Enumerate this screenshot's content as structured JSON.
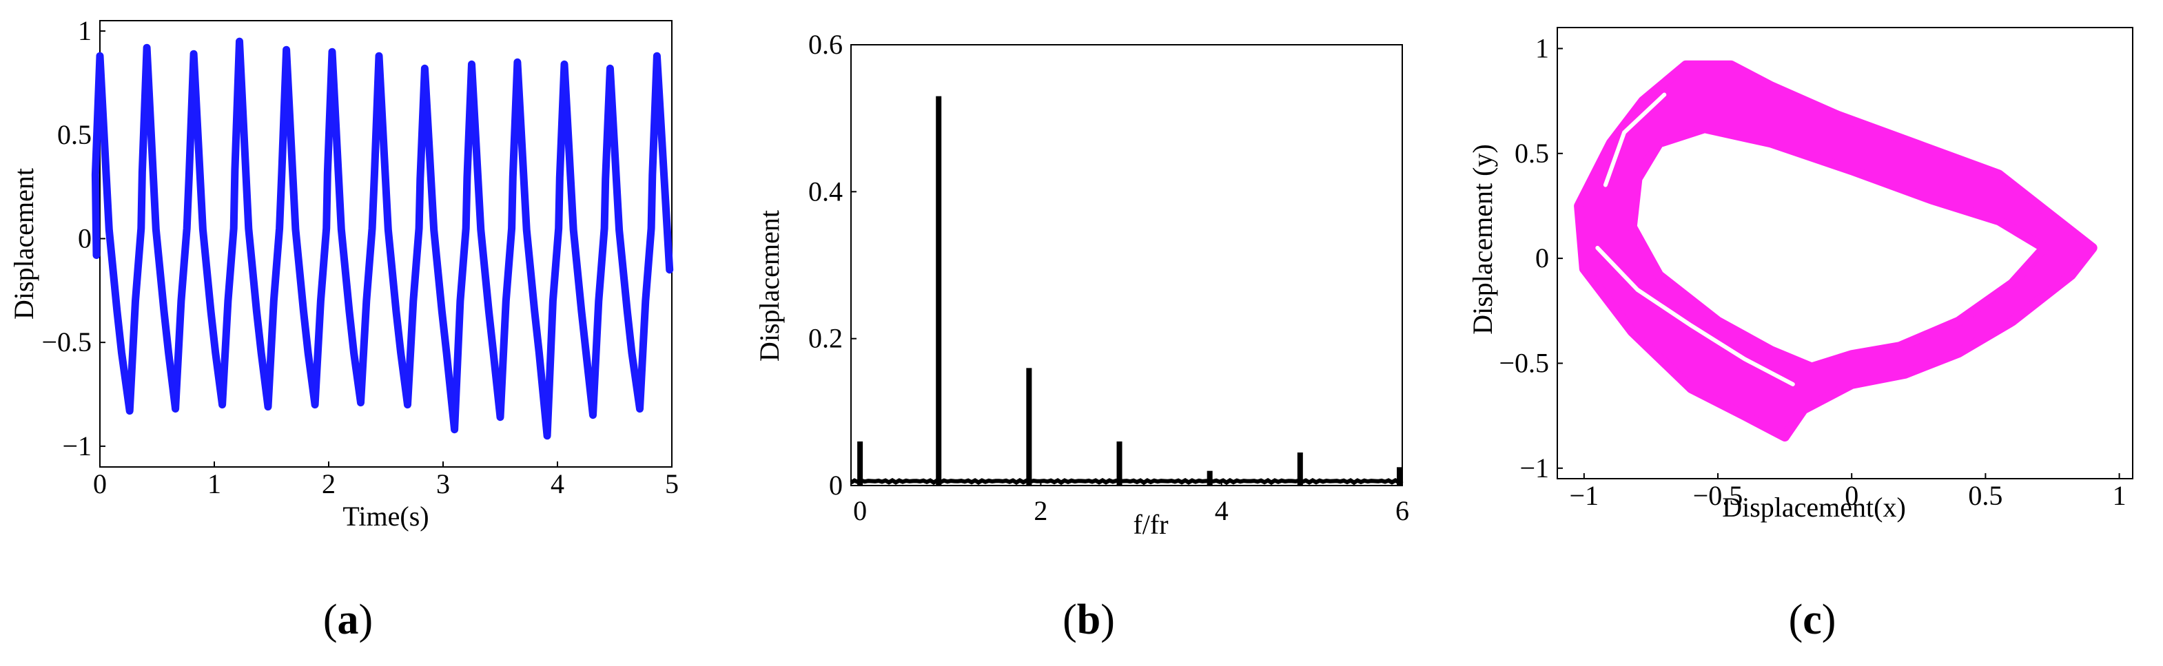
{
  "chart_data": [
    {
      "type": "line",
      "panel_label": "a",
      "xlabel": "Time(s)",
      "ylabel": "Displacement",
      "xlim": [
        0,
        5
      ],
      "ylim": [
        -1.1,
        1.05
      ],
      "xticks": [
        0,
        1,
        2,
        3,
        4,
        5
      ],
      "yticks": [
        -1,
        -0.5,
        0,
        0.5,
        1
      ],
      "ytick_labels": [
        "−1",
        "−0.5",
        "0",
        "0.5",
        "1"
      ],
      "color": "#1a1aff",
      "period_s": 0.405,
      "peaks": [
        [
          0.0,
          0.88
        ],
        [
          0.41,
          0.92
        ],
        [
          0.82,
          0.89
        ],
        [
          1.22,
          0.95
        ],
        [
          1.63,
          0.91
        ],
        [
          2.03,
          0.9
        ],
        [
          2.44,
          0.88
        ],
        [
          2.84,
          0.82
        ],
        [
          3.25,
          0.84
        ],
        [
          3.65,
          0.85
        ],
        [
          4.06,
          0.84
        ],
        [
          4.46,
          0.82
        ],
        [
          4.87,
          0.88
        ]
      ],
      "troughs": [
        [
          0.26,
          -0.83
        ],
        [
          0.66,
          -0.82
        ],
        [
          1.07,
          -0.8
        ],
        [
          1.47,
          -0.81
        ],
        [
          1.88,
          -0.8
        ],
        [
          2.28,
          -0.79
        ],
        [
          2.69,
          -0.8
        ],
        [
          3.1,
          -0.92
        ],
        [
          3.5,
          -0.86
        ],
        [
          3.91,
          -0.95
        ],
        [
          4.31,
          -0.85
        ],
        [
          4.72,
          -0.82
        ]
      ],
      "end": [
        4.98,
        -0.15
      ],
      "start": [
        -0.03,
        -0.08
      ]
    },
    {
      "type": "line",
      "panel_label": "b",
      "xlabel": "f/fr",
      "ylabel": "Displacement",
      "xlim": [
        -0.1,
        6
      ],
      "ylim": [
        0,
        0.6
      ],
      "xticks": [
        0,
        2,
        4,
        6
      ],
      "yticks": [
        0,
        0.2,
        0.4,
        0.6
      ],
      "color": "#000000",
      "peaks": [
        [
          0,
          0.06
        ],
        [
          0.87,
          0.53
        ],
        [
          1.87,
          0.16
        ],
        [
          2.87,
          0.06
        ],
        [
          3.87,
          0.02
        ],
        [
          4.87,
          0.045
        ],
        [
          5.97,
          0.025
        ]
      ]
    },
    {
      "type": "scatter",
      "panel_label": "c",
      "xlabel": "Displacement(x)",
      "ylabel": "Displacement (y)",
      "xlim": [
        -1.1,
        1.05
      ],
      "ylim": [
        -1.05,
        1.1
      ],
      "xticks": [
        -1,
        -0.5,
        0,
        0.5,
        1
      ],
      "xtick_labels": [
        "−1",
        "−0.5",
        "0",
        "0.5",
        "1"
      ],
      "yticks": [
        -1,
        -0.5,
        0,
        0.5,
        1
      ],
      "ytick_labels": [
        "−1",
        "−0.5",
        "0",
        "0.5",
        "1"
      ],
      "color": "#ff22ee",
      "outer_loop": [
        [
          -0.62,
          0.92
        ],
        [
          -0.45,
          0.92
        ],
        [
          -0.3,
          0.82
        ],
        [
          -0.05,
          0.68
        ],
        [
          0.25,
          0.54
        ],
        [
          0.55,
          0.4
        ],
        [
          0.75,
          0.2
        ],
        [
          0.9,
          0.05
        ],
        [
          0.82,
          -0.08
        ],
        [
          0.6,
          -0.3
        ],
        [
          0.4,
          -0.45
        ],
        [
          0.2,
          -0.55
        ],
        [
          0.0,
          -0.6
        ],
        [
          -0.18,
          -0.72
        ],
        [
          -0.25,
          -0.85
        ],
        [
          -0.4,
          -0.75
        ],
        [
          -0.6,
          -0.62
        ],
        [
          -0.82,
          -0.35
        ],
        [
          -1.0,
          -0.05
        ],
        [
          -1.02,
          0.25
        ],
        [
          -0.9,
          0.55
        ],
        [
          -0.78,
          0.75
        ],
        [
          -0.62,
          0.92
        ]
      ],
      "inner_loop": [
        [
          -0.72,
          0.55
        ],
        [
          -0.55,
          0.62
        ],
        [
          -0.3,
          0.55
        ],
        [
          0.0,
          0.42
        ],
        [
          0.3,
          0.28
        ],
        [
          0.55,
          0.18
        ],
        [
          0.72,
          0.05
        ],
        [
          0.6,
          -0.12
        ],
        [
          0.4,
          -0.3
        ],
        [
          0.18,
          -0.42
        ],
        [
          0.0,
          -0.46
        ],
        [
          -0.15,
          -0.52
        ],
        [
          -0.3,
          -0.44
        ],
        [
          -0.5,
          -0.3
        ],
        [
          -0.72,
          -0.08
        ],
        [
          -0.82,
          0.15
        ],
        [
          -0.8,
          0.38
        ],
        [
          -0.72,
          0.55
        ]
      ]
    }
  ]
}
